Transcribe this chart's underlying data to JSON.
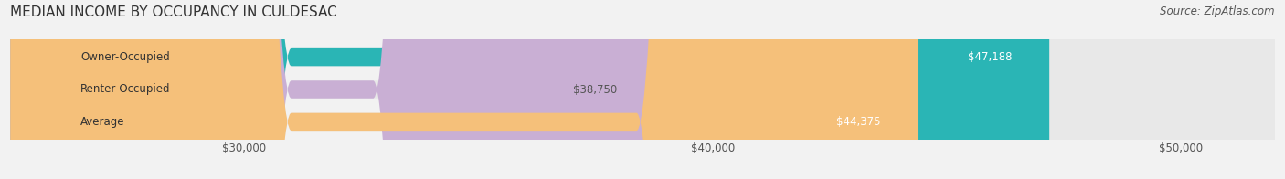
{
  "title": "MEDIAN INCOME BY OCCUPANCY IN CULDESAC",
  "source": "Source: ZipAtlas.com",
  "categories": [
    "Owner-Occupied",
    "Renter-Occupied",
    "Average"
  ],
  "values": [
    47188,
    38750,
    44375
  ],
  "bar_colors": [
    "#2ab5b5",
    "#c9afd4",
    "#f5c07a"
  ],
  "label_colors": [
    "#ffffff",
    "#555555",
    "#ffffff"
  ],
  "value_labels": [
    "$47,188",
    "$38,750",
    "$44,375"
  ],
  "x_min": 25000,
  "x_max": 52000,
  "x_ticks": [
    30000,
    40000,
    50000
  ],
  "x_tick_labels": [
    "$30,000",
    "$40,000",
    "$50,000"
  ],
  "bar_height": 0.55,
  "background_color": "#f2f2f2",
  "bar_bg_color": "#e8e8e8",
  "title_fontsize": 11,
  "source_fontsize": 8.5,
  "label_fontsize": 8.5,
  "tick_fontsize": 8.5
}
